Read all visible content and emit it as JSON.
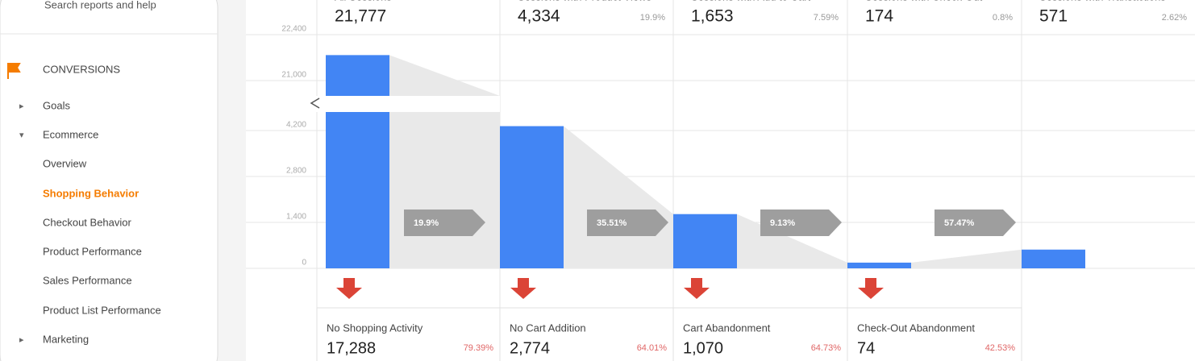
{
  "sidebar": {
    "search": "Search reports and help",
    "section": "CONVERSIONS",
    "items": [
      "Goals",
      "Ecommerce",
      "Overview",
      "Shopping Behavior",
      "Checkout Behavior",
      "Product Performance",
      "Sales Performance",
      "Product List Performance",
      "Marketing"
    ]
  },
  "stages": [
    {
      "label": "All Sessions",
      "value": 21777,
      "value_label": "21,777"
    },
    {
      "label": "Sessions with Product Views",
      "value": 4334,
      "value_label": "4,334",
      "percent": "19.9%"
    },
    {
      "label": "Sessions with Add to Cart",
      "value": 1653,
      "value_label": "1,653",
      "percent": "7.59%"
    },
    {
      "label": "Sessions with Check-Out",
      "value": 174,
      "value_label": "174",
      "percent": "0.8%"
    },
    {
      "label": "Sessions with Transactions",
      "value": 571,
      "value_label": "571",
      "percent": "2.62%"
    }
  ],
  "yticks": [
    0,
    {
      "value": 1400,
      "label": "1,400"
    },
    {
      "value": 2800,
      "label": "2,800"
    },
    {
      "value": 4200,
      "label": "4,200"
    },
    {
      "value": 21000,
      "label": "21,000"
    },
    {
      "value": 22400,
      "label": "22,400"
    }
  ],
  "conversion_rates": [
    "19.9%",
    "35.51%",
    "9.13%",
    "57.47%"
  ],
  "abandonment": [
    {
      "label": "No Shopping Activity",
      "value": "17,288",
      "percent": "79.39%"
    },
    {
      "label": "No Cart Addition",
      "value": "2,774",
      "percent": "64.01%"
    },
    {
      "label": "Cart Abandonment",
      "value": "1,070",
      "percent": "64.73%"
    },
    {
      "label": "Check-Out Abandonment",
      "value": "74",
      "percent": "42.53%"
    }
  ]
}
